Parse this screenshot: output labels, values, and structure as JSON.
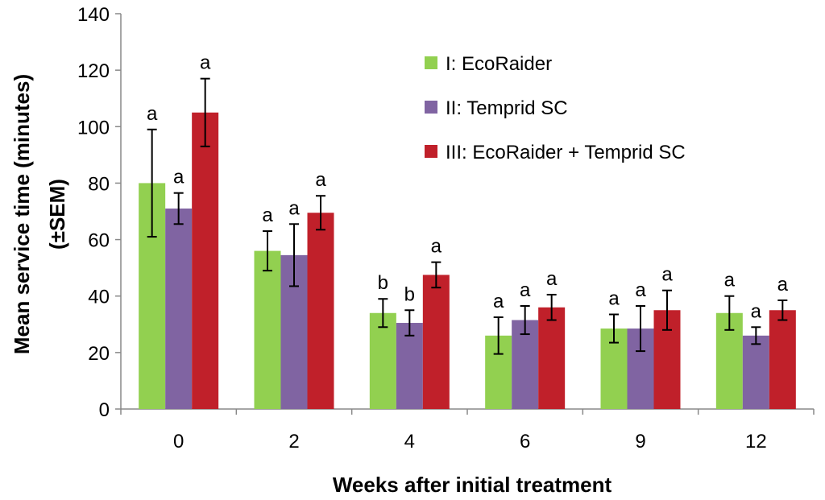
{
  "chart_data": {
    "type": "bar",
    "title": "",
    "xlabel": "Weeks after initial treatment",
    "ylabel_line1": "Mean service time (minutes)",
    "ylabel_line2": "(±SEM)",
    "ylim": [
      0,
      140
    ],
    "yticks": [
      0,
      20,
      40,
      60,
      80,
      100,
      120,
      140
    ],
    "categories": [
      "0",
      "2",
      "4",
      "6",
      "9",
      "12"
    ],
    "series": [
      {
        "name": "I: EcoRaider",
        "color": "#92d050",
        "values": [
          80,
          56,
          34,
          26,
          28.5,
          34
        ],
        "sem": [
          19,
          7,
          5,
          6.5,
          5,
          6
        ],
        "letters": [
          "a",
          "a",
          "b",
          "a",
          "a",
          "a"
        ]
      },
      {
        "name": "II: Temprid SC",
        "color": "#8064a2",
        "values": [
          71,
          54.5,
          30.5,
          31.5,
          28.5,
          26
        ],
        "sem": [
          5.5,
          11,
          4.5,
          5,
          8,
          3
        ],
        "letters": [
          "a",
          "a",
          "b",
          "a",
          "a",
          "a"
        ]
      },
      {
        "name": "III: EcoRaider + Temprid SC",
        "color": "#c0202a",
        "values": [
          105,
          69.5,
          47.5,
          36,
          35,
          35
        ],
        "sem": [
          12,
          6,
          4.5,
          4.5,
          7,
          3.5
        ],
        "letters": [
          "a",
          "a",
          "a",
          "a",
          "a",
          "a"
        ]
      }
    ],
    "legend_position": "top-right"
  }
}
